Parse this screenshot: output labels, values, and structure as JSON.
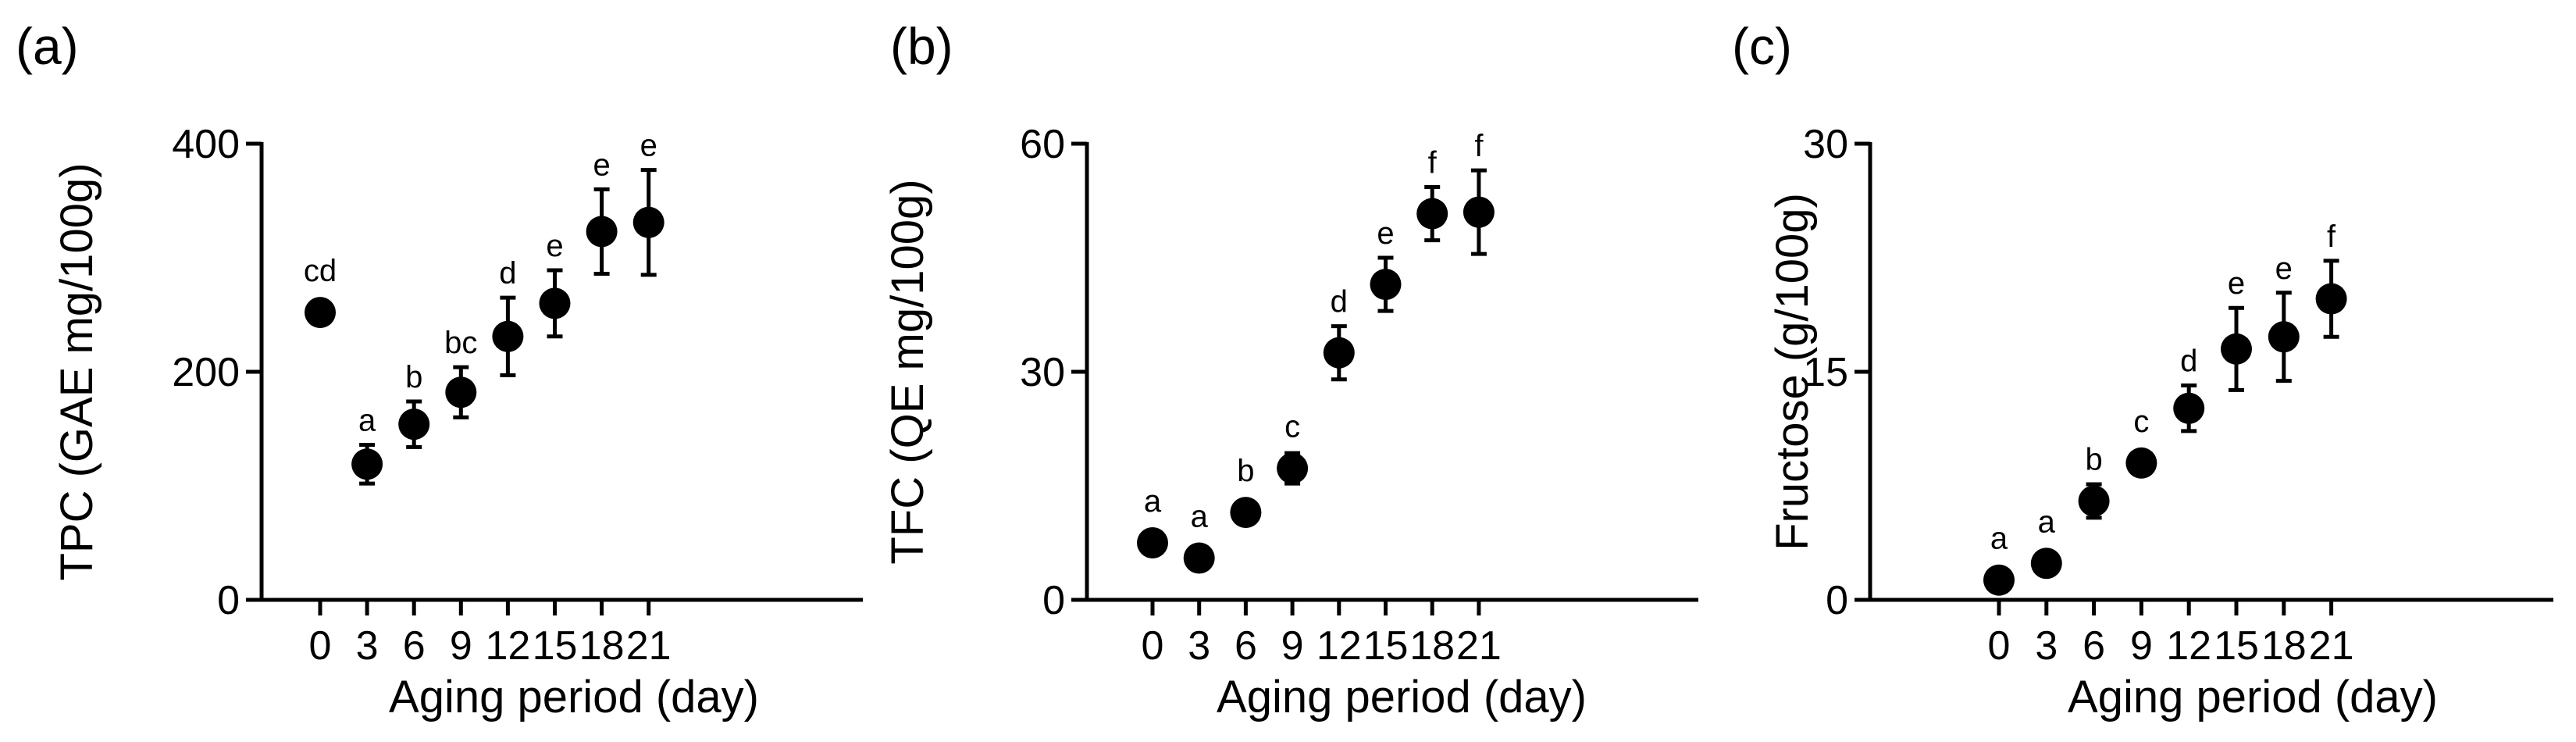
{
  "chart_data": [
    {
      "type": "scatter",
      "panel_label": "(a)",
      "x": [
        0,
        3,
        6,
        9,
        12,
        15,
        18,
        21
      ],
      "x_tick_labels": [
        "0",
        "3",
        "6",
        "9",
        "12",
        "15",
        "18",
        "21"
      ],
      "values": [
        252,
        119,
        154,
        182,
        231,
        260,
        323,
        331
      ],
      "errors": [
        0,
        17,
        20,
        22,
        34,
        29,
        37,
        46
      ],
      "significance": [
        "cd",
        "a",
        "b",
        "bc",
        "d",
        "e",
        "e",
        "e"
      ],
      "xlabel": "Aging period (day)",
      "ylabel": "TPC (GAE mg/100g)",
      "ylim": [
        0,
        400
      ],
      "y_ticks": [
        0,
        200,
        400
      ],
      "y_tick_labels": [
        "0",
        "200",
        "400"
      ]
    },
    {
      "type": "scatter",
      "panel_label": "(b)",
      "x": [
        0,
        3,
        6,
        9,
        12,
        15,
        18,
        21
      ],
      "x_tick_labels": [
        "0",
        "3",
        "6",
        "9",
        "12",
        "15",
        "18",
        "21"
      ],
      "values": [
        7.5,
        5.5,
        11.5,
        17.3,
        32.5,
        41.5,
        50.8,
        51.0
      ],
      "errors": [
        0,
        0,
        0,
        2,
        3.5,
        3.5,
        3.5,
        5.5
      ],
      "significance": [
        "a",
        "a",
        "b",
        "c",
        "d",
        "e",
        "f",
        "f"
      ],
      "xlabel": "Aging period (day)",
      "ylabel": "TFC (QE mg/100g)",
      "ylim": [
        0,
        60
      ],
      "y_ticks": [
        0,
        30,
        60
      ],
      "y_tick_labels": [
        "0",
        "30",
        "60"
      ]
    },
    {
      "type": "scatter",
      "panel_label": "(c)",
      "x": [
        0,
        3,
        6,
        9,
        12,
        15,
        18,
        21
      ],
      "x_tick_labels": [
        "0",
        "3",
        "6",
        "9",
        "12",
        "15",
        "18",
        "21"
      ],
      "values": [
        1.3,
        2.4,
        6.5,
        9.0,
        12.6,
        16.5,
        17.3,
        19.8
      ],
      "errors": [
        0,
        0,
        1.1,
        0,
        1.5,
        2.7,
        2.9,
        2.5
      ],
      "significance": [
        "a",
        "a",
        "b",
        "c",
        "d",
        "e",
        "e",
        "f"
      ],
      "xlabel": "Aging period (day)",
      "ylabel": "Fructose (g/100g)",
      "ylim": [
        0,
        30
      ],
      "y_ticks": [
        0,
        15,
        30
      ],
      "y_tick_labels": [
        "0",
        "15",
        "30"
      ]
    }
  ]
}
